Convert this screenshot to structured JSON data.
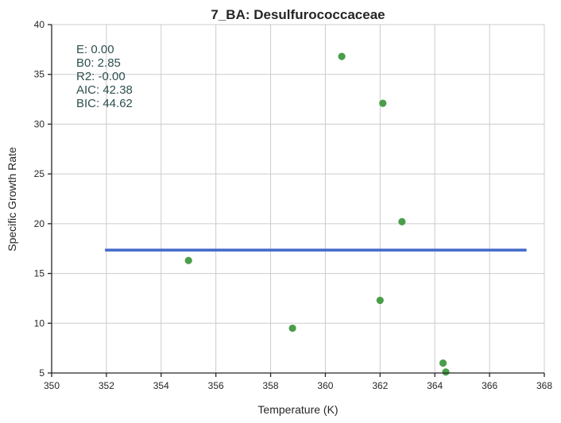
{
  "chart_data": {
    "type": "scatter",
    "title": "7_BA: Desulfurococcaceae",
    "xlabel": "Temperature (K)",
    "ylabel": "Specific Growth Rate",
    "xlim": [
      350,
      368
    ],
    "ylim": [
      5,
      40
    ],
    "xticks": [
      "350",
      "352",
      "354",
      "356",
      "358",
      "360",
      "362",
      "364",
      "366",
      "368"
    ],
    "yticks": [
      "5",
      "10",
      "15",
      "20",
      "25",
      "30",
      "35",
      "40"
    ],
    "grid": true,
    "stats": [
      "E:  0.00",
      "B0:  2.85",
      "R2:  -0.00",
      "AIC: 42.38",
      "BIC: 44.62"
    ],
    "points": {
      "color": "#4a9e4a",
      "x": [
        355.0,
        358.8,
        360.6,
        362.0,
        362.1,
        362.8,
        364.3,
        364.4
      ],
      "y": [
        16.3,
        9.5,
        36.8,
        12.3,
        32.1,
        20.2,
        6.0,
        5.1
      ]
    },
    "fit_line": {
      "color": "#4169c8",
      "x": [
        351.95,
        367.35
      ],
      "y": [
        17.35,
        17.35
      ]
    }
  }
}
